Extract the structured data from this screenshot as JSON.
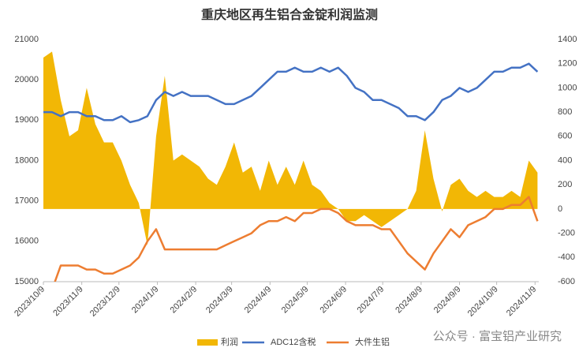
{
  "chart_data": {
    "type": "line",
    "title": "重庆地区再生铝合金锭利润监测",
    "annotation": "公众号 · 富宝铝产业研究",
    "x": [
      "2023/10/9",
      "2023/10/16",
      "2023/10/23",
      "2023/10/30",
      "2023/11/6",
      "2023/11/13",
      "2023/11/20",
      "2023/11/27",
      "2023/12/4",
      "2023/12/11",
      "2023/12/18",
      "2023/12/25",
      "2024/1/1",
      "2024/1/8",
      "2024/1/15",
      "2024/1/22",
      "2024/1/29",
      "2024/2/5",
      "2024/2/12",
      "2024/2/19",
      "2024/2/26",
      "2024/3/4",
      "2024/3/11",
      "2024/3/18",
      "2024/3/25",
      "2024/4/1",
      "2024/4/8",
      "2024/4/15",
      "2024/4/22",
      "2024/4/29",
      "2024/5/6",
      "2024/5/13",
      "2024/5/20",
      "2024/5/27",
      "2024/6/3",
      "2024/6/10",
      "2024/6/17",
      "2024/6/24",
      "2024/7/1",
      "2024/7/8",
      "2024/7/15",
      "2024/7/22",
      "2024/7/29",
      "2024/8/5",
      "2024/8/12",
      "2024/8/19",
      "2024/8/26",
      "2024/9/2",
      "2024/9/9",
      "2024/9/16",
      "2024/9/23",
      "2024/9/30",
      "2024/10/7",
      "2024/10/14",
      "2024/10/21",
      "2024/10/28",
      "2024/11/4",
      "2024/11/11"
    ],
    "series": [
      {
        "name": "利润",
        "color": "#f2b705",
        "axis": "y2",
        "kind": "area",
        "values": [
          1250,
          1300,
          900,
          600,
          650,
          1000,
          700,
          550,
          550,
          400,
          200,
          50,
          -300,
          600,
          1100,
          400,
          450,
          400,
          350,
          250,
          200,
          350,
          550,
          300,
          350,
          150,
          400,
          200,
          350,
          200,
          400,
          200,
          150,
          50,
          0,
          -100,
          -100,
          -50,
          -100,
          -150,
          -100,
          -50,
          0,
          150,
          650,
          250,
          -20,
          200,
          250,
          150,
          100,
          150,
          100,
          100,
          150,
          100,
          400,
          300
        ]
      },
      {
        "name": "ADC12含税",
        "color": "#4472c4",
        "kind": "line",
        "values": [
          19200,
          19200,
          19100,
          19200,
          19200,
          19100,
          19100,
          19000,
          19000,
          19100,
          18950,
          19000,
          19100,
          19500,
          19700,
          19600,
          19700,
          19600,
          19600,
          19600,
          19500,
          19400,
          19400,
          19500,
          19600,
          19800,
          20000,
          20200,
          20200,
          20300,
          20200,
          20200,
          20300,
          20200,
          20300,
          20100,
          19800,
          19700,
          19500,
          19500,
          19400,
          19300,
          19100,
          19100,
          19000,
          19200,
          19500,
          19600,
          19800,
          19700,
          19800,
          20000,
          20200,
          20200,
          20300,
          20300,
          20400,
          20200
        ]
      },
      {
        "name": "大件生铝",
        "color": "#ed7d31",
        "kind": "line",
        "values": [
          14800,
          14800,
          15400,
          15400,
          15400,
          15300,
          15300,
          15200,
          15200,
          15300,
          15400,
          15600,
          16000,
          16300,
          15800,
          15800,
          15800,
          15800,
          15800,
          15800,
          15800,
          15900,
          16000,
          16100,
          16200,
          16400,
          16500,
          16500,
          16600,
          16500,
          16700,
          16700,
          16800,
          16800,
          16700,
          16500,
          16400,
          16400,
          16400,
          16300,
          16300,
          16000,
          15700,
          15500,
          15300,
          15700,
          16000,
          16300,
          16100,
          16400,
          16500,
          16600,
          16800,
          16800,
          16900,
          16900,
          17100,
          16500
        ]
      }
    ],
    "xlim": [
      "2023/10/9",
      "2024/11/12"
    ],
    "xticks": [
      "2023/10/9",
      "2023/11/9",
      "2023/12/9",
      "2024/1/9",
      "2024/2/9",
      "2024/3/9",
      "2024/4/9",
      "2024/5/9",
      "2024/6/9",
      "2024/7/9",
      "2024/8/9",
      "2024/9/9",
      "2024/10/9",
      "2024/11/9"
    ],
    "ylim": [
      15000,
      21000
    ],
    "yticks": [
      15000,
      16000,
      17000,
      18000,
      19000,
      20000,
      21000
    ],
    "y2lim": [
      -600,
      1400
    ],
    "y2ticks": [
      -600,
      -400,
      -200,
      0,
      200,
      400,
      600,
      800,
      1000,
      1200,
      1400
    ],
    "grid": false,
    "legend": "bottom"
  }
}
